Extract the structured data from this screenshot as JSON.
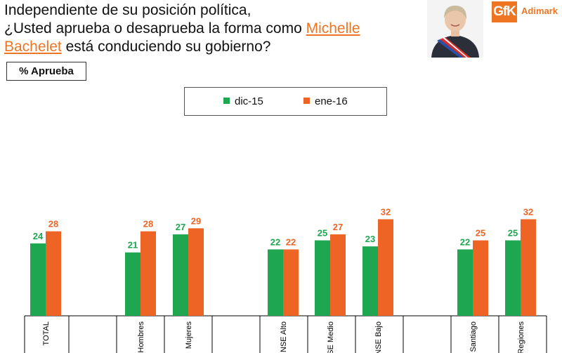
{
  "header": {
    "question_line1": "Independiente de su posición política,",
    "question_line2_pre": "¿Usted aprueba o desaprueba la forma como ",
    "question_highlight1": "Michelle",
    "question_highlight2": "Bachelet",
    "question_line3_post": " está conduciendo su gobierno?",
    "badge": "% Aprueba"
  },
  "logo": {
    "gfk_text": "GfK",
    "adimark_text": "Adimark",
    "accent_color": "#ee7623"
  },
  "chart_data": {
    "type": "bar",
    "categories": [
      "TOTAL",
      "Hombres",
      "Mujeres",
      "NSE Alto",
      "NSE Medio",
      "NSE Bajo",
      "Santiago",
      "Regiones"
    ],
    "series": [
      {
        "name": "dic-15",
        "color": "#1fa650",
        "values": [
          24,
          21,
          27,
          22,
          25,
          23,
          22,
          25
        ]
      },
      {
        "name": "ene-16",
        "color": "#ee6424",
        "values": [
          28,
          28,
          29,
          22,
          27,
          32,
          25,
          32
        ]
      }
    ],
    "legend_position": "top",
    "title": "",
    "xlabel": "",
    "ylabel": "% Aprueba",
    "ylim": [
      0,
      100
    ],
    "grid": false
  }
}
